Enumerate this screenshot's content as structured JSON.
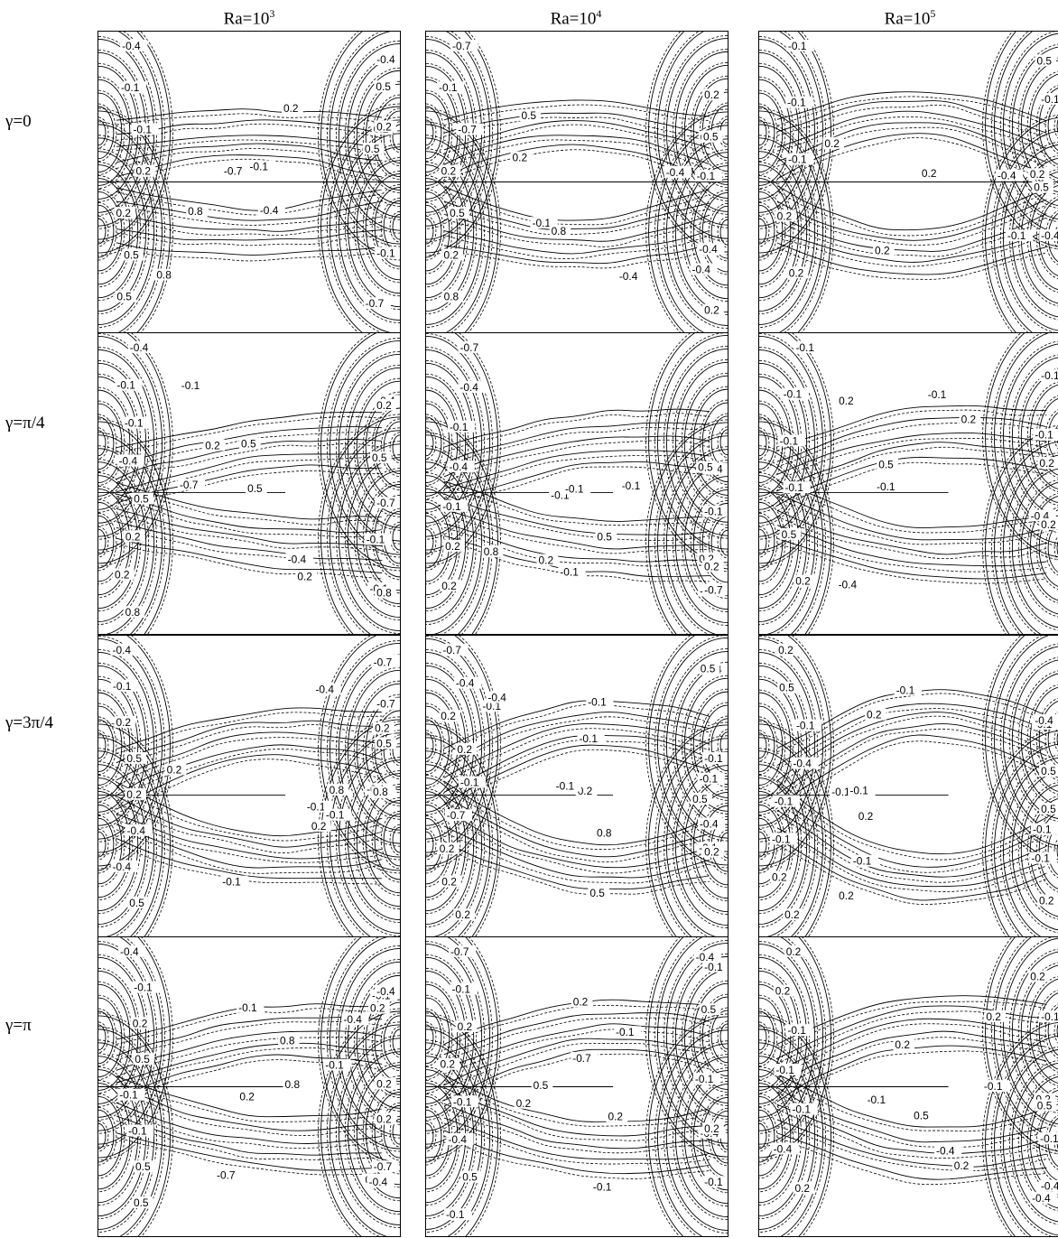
{
  "column_titles": [
    {
      "base": "Ra=10",
      "exp": "3"
    },
    {
      "base": "Ra=10",
      "exp": "4"
    },
    {
      "base": "Ra=10",
      "exp": "5"
    }
  ],
  "row_labels": [
    "γ=0",
    "γ=π/4",
    "γ=3π/4",
    "γ=π"
  ],
  "line_styles": {
    "solid": "#000000",
    "dashed": "#000000"
  },
  "panels": [
    {
      "row": 0,
      "col": 0,
      "labels": [
        "-0.4",
        "-0.7",
        "-0.4",
        "-0.1",
        "-0.1",
        "-0.1",
        "-0.1",
        "-0.4",
        "-0.7",
        "0.2",
        "0.5",
        "0.2",
        "0.2",
        "0.2",
        "0.8",
        "0.5",
        "0.5",
        "0.8",
        "0.5",
        "0.2"
      ]
    },
    {
      "row": 0,
      "col": 1,
      "labels": [
        "-0.7",
        "-0.4",
        "-0.1",
        "-0.1",
        "-0.1",
        "-0.4",
        "-0.7",
        "-0.4",
        "-0.4",
        "0.2",
        "0.5",
        "0.8",
        "0.5",
        "0.2",
        "0.2",
        "0.2",
        "0.2",
        "0.5",
        "0.8",
        "0.5"
      ]
    },
    {
      "row": 0,
      "col": 2,
      "labels": [
        "-0.1",
        "-0.4",
        "-0.1",
        "-0.1",
        "-0.1",
        "-0.4",
        "-0.1",
        "0.2",
        "0.2",
        "0.2",
        "0.5",
        "0.2",
        "0.2",
        "0.5",
        "0.2"
      ]
    },
    {
      "row": 1,
      "col": 0,
      "labels": [
        "-0.4",
        "-0.7",
        "-0.4",
        "-0.1",
        "-0.1",
        "-0.1",
        "-0.1",
        "-0.4",
        "-0.7",
        "-0.4",
        "-0.1",
        "0.2",
        "0.5",
        "0.8",
        "0.5",
        "0.2",
        "0.2",
        "0.2",
        "0.2",
        "0.5",
        "0.5",
        "0.8"
      ]
    },
    {
      "row": 1,
      "col": 1,
      "labels": [
        "-0.7",
        "-0.4",
        "-0.1",
        "-0.4",
        "-0.1",
        "-0.1",
        "-0.1",
        "-0.1",
        "-0.1",
        "-0.4",
        "-0.7",
        "-0.1",
        "-0.1",
        "0.2",
        "0.5",
        "0.2",
        "0.2",
        "0.2",
        "0.2",
        "0.5",
        "0.8"
      ]
    },
    {
      "row": 1,
      "col": 2,
      "labels": [
        "-0.1",
        "-0.1",
        "-0.4",
        "-0.1",
        "-0.1",
        "-0.1",
        "-0.1",
        "-0.4",
        "-0.1",
        "-0.1",
        "-0.1",
        "0.2",
        "0.5",
        "0.2",
        "0.2",
        "0.2",
        "0.2",
        "0.5"
      ]
    },
    {
      "row": 2,
      "col": 0,
      "labels": [
        "-0.4",
        "-0.7",
        "-0.4",
        "-0.1",
        "-0.1",
        "-0.1",
        "0.2",
        "0.5",
        "0.8",
        "0.5",
        "0.2",
        "0.2",
        "0.2",
        "-0.1",
        "-0.1",
        "-0.4",
        "-0.7",
        "-0.1",
        "-0.4",
        "-0.1",
        "0.2",
        "0.5",
        "0.8"
      ]
    },
    {
      "row": 2,
      "col": 1,
      "labels": [
        "-0.7",
        "-0.4",
        "-0.1",
        "-0.4",
        "-0.1",
        "-0.1",
        "0.2",
        "0.5",
        "0.2",
        "0.2",
        "-0.1",
        "-0.1",
        "-0.1",
        "-0.1",
        "-0.4",
        "-0.7",
        "-0.4",
        "-0.1",
        "0.2",
        "0.5",
        "0.8",
        "0.2",
        "0.2",
        "0.5",
        "0.2"
      ]
    },
    {
      "row": 2,
      "col": 2,
      "labels": [
        "0.2",
        "0.2",
        "0.2",
        "0.5",
        "0.5",
        "0.2",
        "-0.1",
        "-0.1",
        "-0.1",
        "-0.4",
        "-0.1",
        "-0.1",
        "-0.1",
        "-0.1",
        "-0.1",
        "-0.1",
        "-0.4",
        "-0.1",
        "0.2",
        "0.5",
        "0.2",
        "0.2"
      ]
    },
    {
      "row": 3,
      "col": 0,
      "labels": [
        "-0.4",
        "-0.7",
        "-0.4",
        "-0.1",
        "-0.1",
        "-0.1",
        "0.2",
        "0.2",
        "0.8",
        "0.5",
        "0.2",
        "-0.1",
        "-0.1",
        "-0.4",
        "-0.7",
        "-0.1",
        "-0.4",
        "0.2",
        "0.5",
        "0.2",
        "0.8",
        "0.5",
        "0.2"
      ]
    },
    {
      "row": 3,
      "col": 1,
      "labels": [
        "-0.7",
        "-0.4",
        "-0.1",
        "-0.1",
        "-0.1",
        "0.2",
        "0.2",
        "0.5",
        "0.5",
        "0.2",
        "-0.1",
        "-0.1",
        "-0.1",
        "-0.4",
        "-0.7",
        "-0.4",
        "-0.1",
        "0.2",
        "0.5",
        "0.2",
        "0.2",
        "-0.1"
      ]
    },
    {
      "row": 3,
      "col": 2,
      "labels": [
        "0.2",
        "0.2",
        "0.2",
        "0.2",
        "0.5",
        "0.2",
        "-0.1",
        "-0.4",
        "-0.1",
        "-0.1",
        "-0.1",
        "-0.1",
        "-0.1",
        "-0.4",
        "-0.4",
        "-0.4",
        "0.2",
        "0.5",
        "0.2",
        "-0.1",
        "0.2"
      ]
    }
  ]
}
